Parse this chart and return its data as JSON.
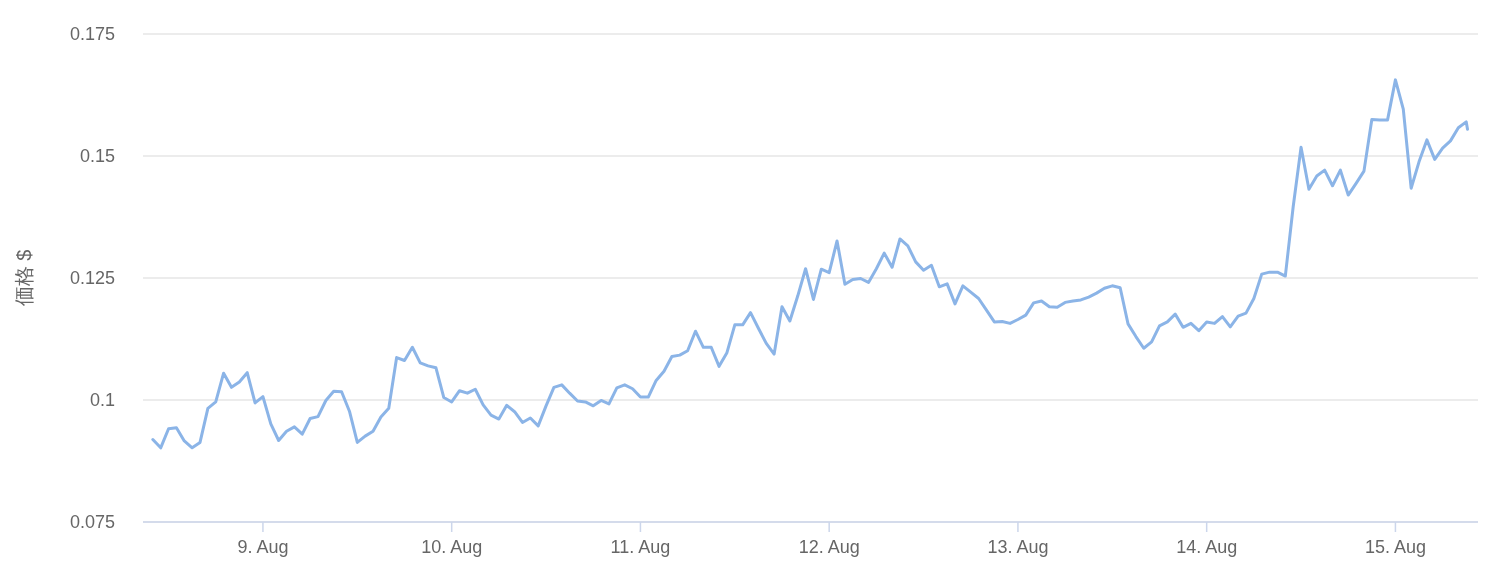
{
  "chart_data": {
    "type": "line",
    "ylabel": "価格 $",
    "color": "#8bb4e7",
    "grid": "y",
    "marker": "none",
    "line_style": "solid",
    "xlim": [
      "--08-08T08:45",
      "--08-15T10:30"
    ],
    "xticks": [
      {
        "value": "--08-09",
        "label": "9. Aug"
      },
      {
        "value": "--08-10",
        "label": "10. Aug"
      },
      {
        "value": "--08-11",
        "label": "11. Aug"
      },
      {
        "value": "--08-12",
        "label": "12. Aug"
      },
      {
        "value": "--08-13",
        "label": "13. Aug"
      },
      {
        "value": "--08-14",
        "label": "14. Aug"
      },
      {
        "value": "--08-15",
        "label": "15. Aug"
      }
    ],
    "ylim": [
      0.075,
      0.175
    ],
    "yticks": [
      0.075,
      0.1,
      0.125,
      0.15,
      0.175
    ],
    "x": [
      "--08-08T10:00",
      "--08-08T11:00",
      "--08-08T12:00",
      "--08-08T13:00",
      "--08-08T14:00",
      "--08-08T15:00",
      "--08-08T16:00",
      "--08-08T17:00",
      "--08-08T18:00",
      "--08-08T19:00",
      "--08-08T20:00",
      "--08-08T21:00",
      "--08-08T22:00",
      "--08-08T23:00",
      "--08-09T00:00",
      "--08-09T01:00",
      "--08-09T02:00",
      "--08-09T03:00",
      "--08-09T04:00",
      "--08-09T05:00",
      "--08-09T06:00",
      "--08-09T07:00",
      "--08-09T08:00",
      "--08-09T09:00",
      "--08-09T10:00",
      "--08-09T11:00",
      "--08-09T12:00",
      "--08-09T13:00",
      "--08-09T14:00",
      "--08-09T15:00",
      "--08-09T16:00",
      "--08-09T17:00",
      "--08-09T18:00",
      "--08-09T19:00",
      "--08-09T20:00",
      "--08-09T21:00",
      "--08-09T22:00",
      "--08-09T23:00",
      "--08-10T00:00",
      "--08-10T01:00",
      "--08-10T02:00",
      "--08-10T03:00",
      "--08-10T04:00",
      "--08-10T05:00",
      "--08-10T06:00",
      "--08-10T07:00",
      "--08-10T08:00",
      "--08-10T09:00",
      "--08-10T10:00",
      "--08-10T11:00",
      "--08-10T12:00",
      "--08-10T13:00",
      "--08-10T14:00",
      "--08-10T15:00",
      "--08-10T16:00",
      "--08-10T17:00",
      "--08-10T18:00",
      "--08-10T19:00",
      "--08-10T20:00",
      "--08-10T21:00",
      "--08-10T22:00",
      "--08-10T23:00",
      "--08-11T00:00",
      "--08-11T01:00",
      "--08-11T02:00",
      "--08-11T03:00",
      "--08-11T04:00",
      "--08-11T05:00",
      "--08-11T06:00",
      "--08-11T07:00",
      "--08-11T08:00",
      "--08-11T09:00",
      "--08-11T10:00",
      "--08-11T11:00",
      "--08-11T12:00",
      "--08-11T13:00",
      "--08-11T14:00",
      "--08-11T15:00",
      "--08-11T16:00",
      "--08-11T17:00",
      "--08-11T18:00",
      "--08-11T19:00",
      "--08-11T20:00",
      "--08-11T21:00",
      "--08-11T22:00",
      "--08-11T23:00",
      "--08-12T00:00",
      "--08-12T01:00",
      "--08-12T02:00",
      "--08-12T03:00",
      "--08-12T04:00",
      "--08-12T05:00",
      "--08-12T06:00",
      "--08-12T07:00",
      "--08-12T08:00",
      "--08-12T09:00",
      "--08-12T10:00",
      "--08-12T11:00",
      "--08-12T12:00",
      "--08-12T13:00",
      "--08-12T14:00",
      "--08-12T15:00",
      "--08-12T16:00",
      "--08-12T17:00",
      "--08-12T18:00",
      "--08-12T19:00",
      "--08-12T20:00",
      "--08-12T21:00",
      "--08-12T22:00",
      "--08-12T23:00",
      "--08-13T00:00",
      "--08-13T01:00",
      "--08-13T02:00",
      "--08-13T03:00",
      "--08-13T04:00",
      "--08-13T05:00",
      "--08-13T06:00",
      "--08-13T07:00",
      "--08-13T08:00",
      "--08-13T09:00",
      "--08-13T10:00",
      "--08-13T11:00",
      "--08-13T12:00",
      "--08-13T13:00",
      "--08-13T14:00",
      "--08-13T15:00",
      "--08-13T16:00",
      "--08-13T17:00",
      "--08-13T18:00",
      "--08-13T19:00",
      "--08-13T20:00",
      "--08-13T21:00",
      "--08-13T22:00",
      "--08-13T23:00",
      "--08-14T00:00",
      "--08-14T01:00",
      "--08-14T02:00",
      "--08-14T03:00",
      "--08-14T04:00",
      "--08-14T05:00",
      "--08-14T06:00",
      "--08-14T07:00",
      "--08-14T08:00",
      "--08-14T09:00",
      "--08-14T10:00",
      "--08-14T11:00",
      "--08-14T12:00",
      "--08-14T13:00",
      "--08-14T14:00",
      "--08-14T15:00",
      "--08-14T16:00",
      "--08-14T17:00",
      "--08-14T18:00",
      "--08-14T19:00",
      "--08-14T20:00",
      "--08-14T21:00",
      "--08-14T22:00",
      "--08-14T23:00",
      "--08-15T00:00",
      "--08-15T01:00",
      "--08-15T02:00",
      "--08-15T03:00",
      "--08-15T04:00",
      "--08-15T05:00",
      "--08-15T06:00",
      "--08-15T07:00",
      "--08-15T08:00",
      "--08-15T09:00",
      "--08-15T09:10"
    ],
    "values": [
      0.0919,
      0.0902,
      0.0941,
      0.0943,
      0.0916,
      0.0902,
      0.0913,
      0.0983,
      0.0996,
      0.1055,
      0.1026,
      0.1037,
      0.1056,
      0.0994,
      0.1007,
      0.0951,
      0.0917,
      0.0936,
      0.0945,
      0.093,
      0.0962,
      0.0966,
      0.0999,
      0.1018,
      0.1017,
      0.0977,
      0.0913,
      0.0926,
      0.0936,
      0.0965,
      0.0983,
      0.1087,
      0.1081,
      0.1108,
      0.1076,
      0.107,
      0.1066,
      0.1005,
      0.0996,
      0.1019,
      0.1014,
      0.1022,
      0.099,
      0.0969,
      0.0961,
      0.0989,
      0.0976,
      0.0954,
      0.0963,
      0.0947,
      0.0988,
      0.1026,
      0.1031,
      0.1014,
      0.0998,
      0.0996,
      0.0988,
      0.0999,
      0.0992,
      0.1025,
      0.1031,
      0.1023,
      0.1006,
      0.1006,
      0.104,
      0.1059,
      0.1089,
      0.1092,
      0.1101,
      0.1141,
      0.1108,
      0.1108,
      0.1069,
      0.1097,
      0.1154,
      0.1154,
      0.1179,
      0.1147,
      0.1116,
      0.1094,
      0.1191,
      0.1162,
      0.1213,
      0.1269,
      0.1206,
      0.1268,
      0.1261,
      0.1326,
      0.1237,
      0.1247,
      0.1249,
      0.1241,
      0.1269,
      0.1301,
      0.1272,
      0.133,
      0.1316,
      0.1283,
      0.1266,
      0.1276,
      0.1232,
      0.1238,
      0.1197,
      0.1234,
      0.1221,
      0.1208,
      0.1184,
      0.116,
      0.1161,
      0.1157,
      0.1165,
      0.1174,
      0.1199,
      0.1203,
      0.1191,
      0.119,
      0.12,
      0.1203,
      0.1205,
      0.1211,
      0.1219,
      0.1229,
      0.1234,
      0.123,
      0.1156,
      0.113,
      0.1106,
      0.1119,
      0.1152,
      0.116,
      0.1176,
      0.1149,
      0.1157,
      0.1142,
      0.116,
      0.1157,
      0.1171,
      0.115,
      0.1172,
      0.1178,
      0.1208,
      0.1258,
      0.1262,
      0.1262,
      0.1254,
      0.1396,
      0.1518,
      0.1432,
      0.1459,
      0.1471,
      0.1439,
      0.1471,
      0.142,
      0.1444,
      0.1469,
      0.1575,
      0.1574,
      0.1574,
      0.1656,
      0.1596,
      0.1434,
      0.1488,
      0.1533,
      0.1493,
      0.1516,
      0.1531,
      0.1558,
      0.157,
      0.1555
    ]
  }
}
